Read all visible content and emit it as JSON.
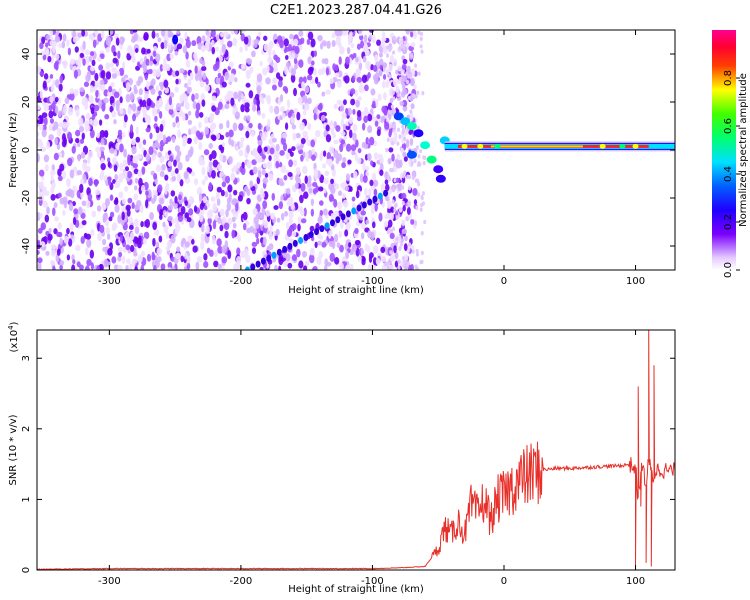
{
  "title": "C2E1.2023.287.04.41.G26",
  "chart_data": [
    {
      "type": "heatmap",
      "title": "C2E1.2023.287.04.41.G26",
      "xlabel": "Height of straight line (km)",
      "ylabel": "Frequency (Hz)",
      "xlim": [
        -355,
        130
      ],
      "ylim": [
        -50,
        50
      ],
      "x_ticks": [
        -300,
        -200,
        -100,
        0,
        100
      ],
      "y_ticks": [
        -40,
        -20,
        0,
        20,
        40
      ],
      "colorbar": {
        "label": "Normalized spectral amplitude",
        "range": [
          0,
          1
        ],
        "ticks": [
          "0.0",
          "0.2",
          "0.4",
          "0.6",
          "0.8"
        ],
        "colormap": [
          "#ffffff",
          "#d9b3ff",
          "#7a00ff",
          "#0000ff",
          "#00ffff",
          "#00ff00",
          "#ffff00",
          "#ff0000",
          "#ff0090"
        ]
      },
      "description_features": {
        "noise_region_x": [
          -355,
          -75
        ],
        "carrier_frequency_hz": 1.5,
        "carrier_x_range": [
          -45,
          130
        ],
        "diagonal_track": {
          "x": [
            -195,
            -90
          ],
          "y": [
            -50,
            -18
          ]
        },
        "upper_track_start": {
          "x": -250,
          "y": 46
        }
      }
    },
    {
      "type": "line",
      "xlabel": "Height of straight line (km)",
      "ylabel": "SNR (10 * v/v)",
      "ylabel_scale": "(x10",
      "ylabel_scale_exp": "4",
      "ylabel_scale_close": ")",
      "xlim": [
        -355,
        130
      ],
      "ylim": [
        0,
        3.4
      ],
      "x_ticks": [
        -300,
        -200,
        -100,
        0,
        100
      ],
      "y_ticks": [
        0,
        1,
        2,
        3
      ],
      "color": "#e8302a",
      "series": [
        {
          "x": [
            -355,
            -300,
            -200,
            -100,
            -80,
            -60,
            -50,
            -45,
            -40,
            -35,
            -30,
            -25,
            -20,
            -15,
            -10,
            -5,
            0,
            5,
            10,
            20,
            30,
            40,
            50,
            60,
            70,
            80,
            90,
            95,
            100,
            102,
            105,
            108,
            110,
            113,
            116,
            120,
            130
          ],
          "y": [
            0.01,
            0.02,
            0.02,
            0.02,
            0.03,
            0.05,
            0.3,
            0.6,
            0.5,
            0.7,
            0.5,
            0.9,
            0.8,
            1.0,
            0.7,
            1.0,
            1.05,
            1.15,
            1.25,
            1.35,
            1.42,
            1.44,
            1.44,
            1.45,
            1.46,
            1.47,
            1.48,
            1.5,
            1.45,
            1.0,
            1.5,
            1.2,
            1.55,
            1.3,
            1.42,
            1.42,
            1.4
          ]
        }
      ]
    }
  ]
}
